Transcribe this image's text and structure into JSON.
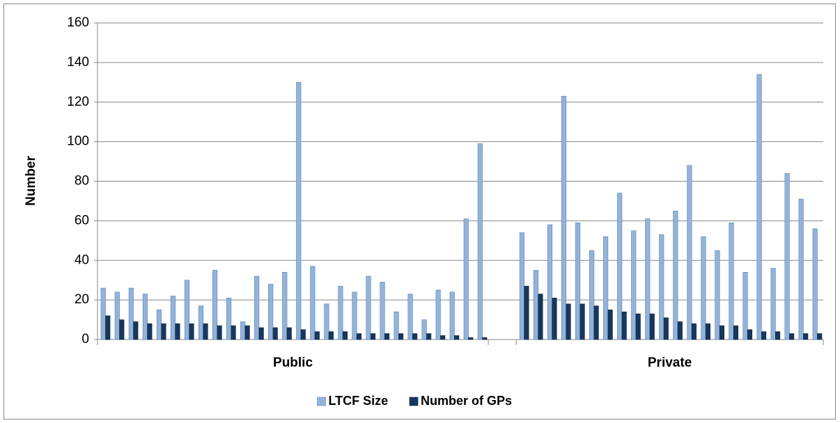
{
  "chart_data": {
    "type": "bar",
    "y_label": "Number",
    "categories": [
      null,
      null,
      null,
      null,
      null,
      null,
      null,
      null,
      null,
      null,
      null,
      null,
      null,
      null,
      null,
      null,
      null,
      null,
      null,
      null,
      null,
      null,
      null,
      null,
      null,
      null,
      null,
      null,
      null,
      null,
      null,
      null,
      null,
      null,
      null,
      null,
      null,
      null,
      null,
      null,
      null,
      null,
      null,
      null,
      null,
      null,
      null,
      null,
      null,
      null,
      null,
      null
    ],
    "groups": [
      {
        "name": "Public",
        "start": 0,
        "end": 27
      },
      {
        "name": "Private",
        "start": 30,
        "end": 51
      }
    ],
    "series": [
      {
        "name": "LTCF Size",
        "color": "#95b3d7",
        "stroke": "#4f81bd",
        "values": [
          26,
          24,
          26,
          23,
          15,
          22,
          30,
          17,
          35,
          21,
          9,
          32,
          28,
          34,
          130,
          37,
          18,
          27,
          24,
          32,
          29,
          14,
          23,
          10,
          25,
          24,
          61,
          99,
          null,
          null,
          54,
          35,
          58,
          123,
          59,
          45,
          52,
          74,
          55,
          61,
          53,
          65,
          88,
          52,
          45,
          59,
          34,
          134,
          36,
          84,
          71,
          56
        ]
      },
      {
        "name": "Number of GPs",
        "color": "#17375e",
        "stroke": "#0f243e",
        "values": [
          12,
          10,
          9,
          8,
          8,
          8,
          8,
          8,
          7,
          7,
          7,
          6,
          6,
          6,
          5,
          4,
          4,
          4,
          3,
          3,
          3,
          3,
          3,
          3,
          2,
          2,
          1,
          1,
          null,
          null,
          27,
          23,
          21,
          18,
          18,
          17,
          15,
          14,
          13,
          13,
          11,
          9,
          8,
          8,
          7,
          7,
          5,
          4,
          4,
          3,
          3,
          3
        ]
      }
    ],
    "ylim": [
      0,
      160
    ],
    "yticks": [
      0,
      20,
      40,
      60,
      80,
      100,
      120,
      140,
      160
    ],
    "grid": true,
    "legend": "bottom"
  }
}
